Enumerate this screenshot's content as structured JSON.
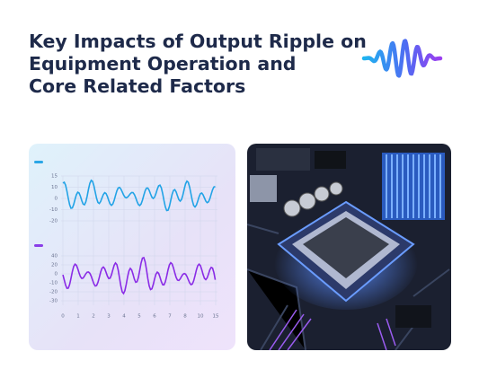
{
  "header": {
    "title_lines": [
      "Key Impacts of Output Ripple on",
      "Equipment Operation and",
      "Core Related Factors"
    ]
  },
  "illustration": {
    "top_panel": {
      "y_labels": [
        "15",
        "10",
        "0",
        "-10",
        "-20"
      ]
    },
    "bottom_panel": {
      "y_labels": [
        "40",
        "20",
        "0",
        "-10",
        "-20",
        "-30"
      ],
      "x_labels": [
        "0",
        "1",
        "2",
        "3",
        "4",
        "5",
        "6",
        "7",
        "8",
        "10",
        "15"
      ]
    }
  }
}
